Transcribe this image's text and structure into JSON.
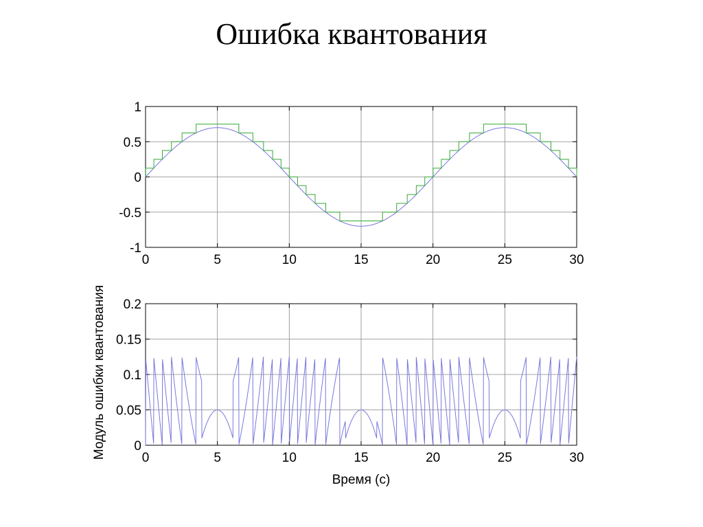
{
  "slide": {
    "title": "Ошибка квантования"
  },
  "colors": {
    "signal": "#7777dd",
    "quantized": "#33aa33",
    "error": "#7777dd",
    "axis": "#000000",
    "grid": "#888888"
  },
  "chart_data": [
    {
      "type": "line",
      "title": "",
      "xlabel": "",
      "ylabel": "",
      "xlim": [
        0,
        30
      ],
      "ylim": [
        -1,
        1
      ],
      "grid": true,
      "x_ticks": [
        "0",
        "5",
        "10",
        "15",
        "20",
        "25",
        "30"
      ],
      "y_ticks": [
        "-1",
        "-0.5",
        "0",
        "0.5",
        "1"
      ],
      "signal": {
        "function": "0.7*sin(2*pi*t/20)",
        "t_range": [
          0,
          30
        ]
      },
      "series": [
        {
          "name": "",
          "color": "#7777dd",
          "kind": "smooth",
          "x": [
            0,
            2.5,
            5,
            7.5,
            10,
            12.5,
            15,
            17.5,
            20,
            22.5,
            25,
            27.5,
            30
          ],
          "values": [
            0,
            0.495,
            0.7,
            0.495,
            0,
            -0.495,
            -0.7,
            -0.495,
            0,
            0.495,
            0.7,
            0.495,
            0
          ]
        },
        {
          "name": "",
          "color": "#33aa33",
          "kind": "step",
          "step": 0.125,
          "rounding": "ceil",
          "x": [
            0,
            2.5,
            5,
            7.5,
            10,
            12.5,
            15,
            17.5,
            20,
            22.5,
            25,
            27.5,
            30
          ],
          "values": [
            0,
            0.5,
            0.75,
            0.5,
            0,
            -0.375,
            -0.625,
            -0.375,
            0,
            0.5,
            0.75,
            0.5,
            0
          ]
        }
      ]
    },
    {
      "type": "line",
      "title": "",
      "xlabel": "Время (с)",
      "ylabel": "Модуль ошибки квантования",
      "xlim": [
        0,
        30
      ],
      "ylim": [
        0,
        0.2
      ],
      "grid": true,
      "x_ticks": [
        "0",
        "5",
        "10",
        "15",
        "20",
        "25",
        "30"
      ],
      "y_ticks": [
        "0",
        "0.05",
        "0.1",
        "0.15",
        "0.2"
      ],
      "series": [
        {
          "name": "",
          "color": "#7777dd",
          "kind": "sawtooth",
          "max": 0.125,
          "x": [
            0,
            5,
            10,
            15,
            20,
            25,
            30
          ],
          "values": [
            0,
            0.05,
            0,
            0.075,
            0,
            0.05,
            0
          ]
        }
      ]
    }
  ]
}
